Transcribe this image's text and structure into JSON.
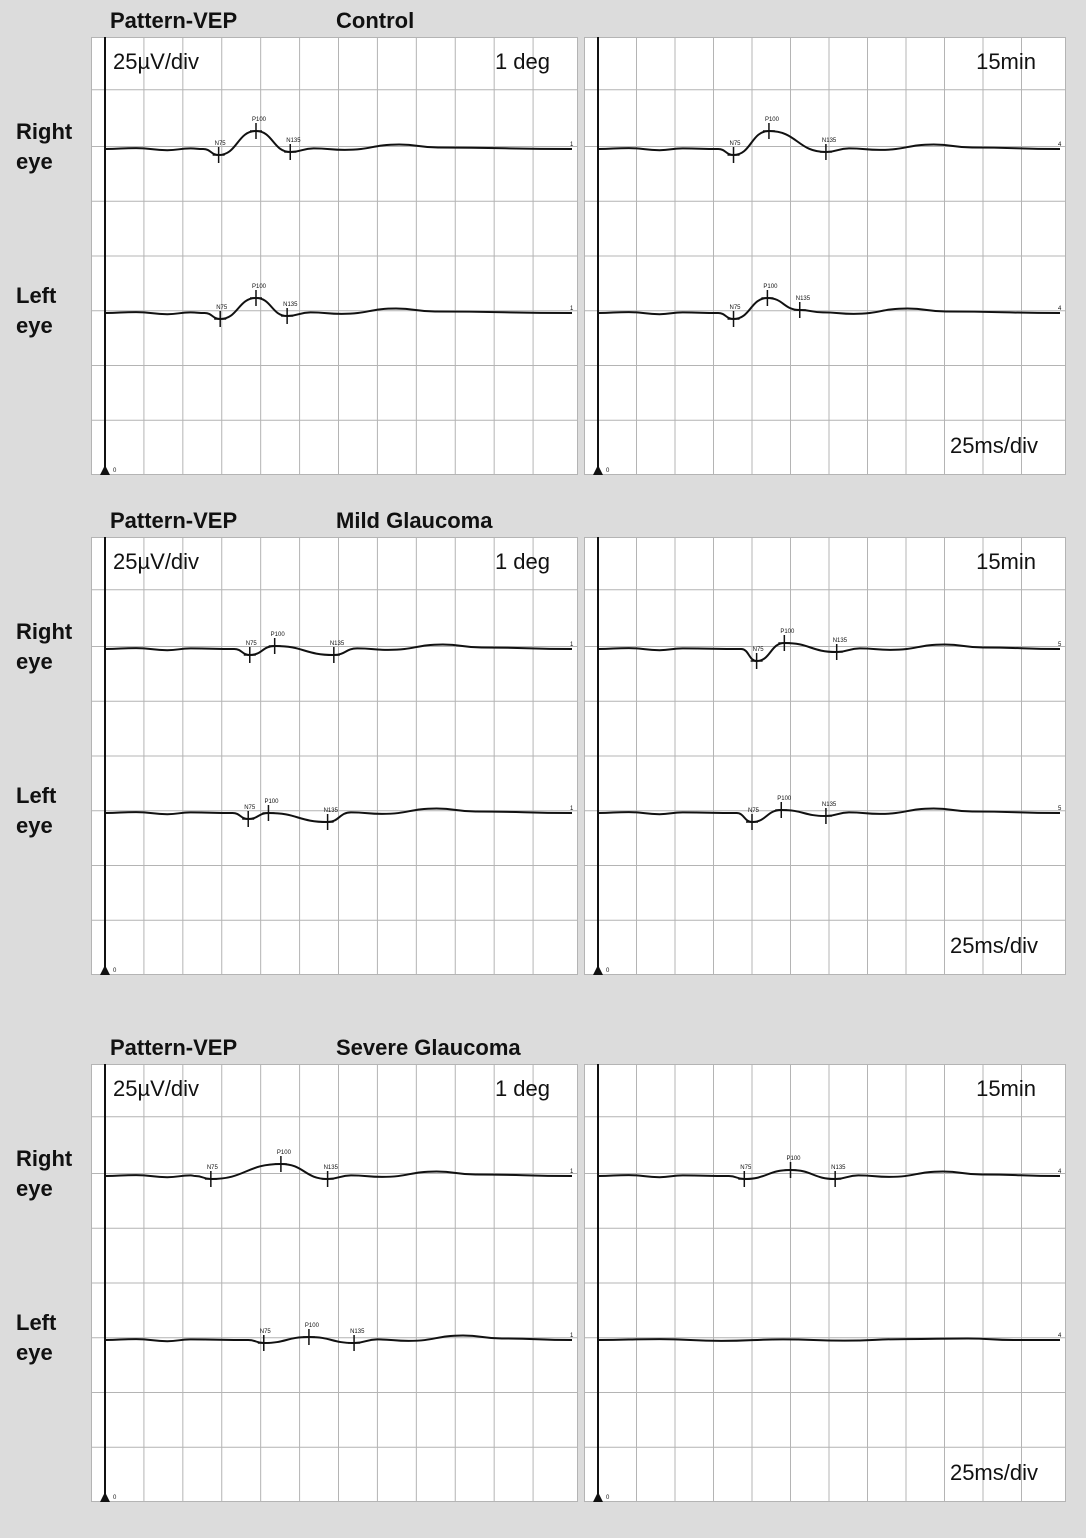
{
  "sections": [
    {
      "title": "Pattern-VEP",
      "condition": "Control"
    },
    {
      "title": "Pattern-VEP",
      "condition": "Mild Glaucoma"
    },
    {
      "title": "Pattern-VEP",
      "condition": "Severe Glaucoma"
    }
  ],
  "eye_labels": {
    "right": "Right\neye",
    "left": "Left\neye"
  },
  "scale": {
    "amplitude": "25µV/div",
    "time": "25ms/div",
    "origin_label": "0"
  },
  "stimulus": {
    "large": "1 deg",
    "small": "15min"
  },
  "peak_labels": [
    "N75",
    "P100",
    "N135"
  ],
  "colors": {
    "background": "#dcdcdc",
    "panel": "#ffffff",
    "grid": "#b4b4b4",
    "trace": "#111111"
  },
  "chart_data": [
    {
      "type": "line",
      "section": "Control",
      "stimulus": "1 deg",
      "series": [
        {
          "name": "Right eye",
          "trace_end": "1",
          "N75": [
            73,
            -0.2
          ],
          "P100": [
            97,
            0.6
          ],
          "N135": [
            119,
            -0.1
          ]
        },
        {
          "name": "Left eye",
          "trace_end": "1",
          "N75": [
            74,
            -0.2
          ],
          "P100": [
            97,
            0.5
          ],
          "N135": [
            117,
            -0.1
          ]
        }
      ]
    },
    {
      "type": "line",
      "section": "Control",
      "stimulus": "15min",
      "series": [
        {
          "name": "Right eye",
          "trace_end": "4",
          "N75": [
            88,
            -0.2
          ],
          "P100": [
            111,
            0.6
          ],
          "N135": [
            148,
            -0.1
          ]
        },
        {
          "name": "Left eye",
          "trace_end": "4",
          "N75": [
            88,
            -0.2
          ],
          "P100": [
            110,
            0.5
          ],
          "N135": [
            131,
            0.1
          ]
        }
      ]
    },
    {
      "type": "line",
      "section": "Mild Glaucoma",
      "stimulus": "1 deg",
      "series": [
        {
          "name": "Right eye",
          "trace_end": "1",
          "N75": [
            93,
            -0.2
          ],
          "P100": [
            109,
            0.1
          ],
          "N135": [
            147,
            -0.2
          ]
        },
        {
          "name": "Left eye",
          "trace_end": "1",
          "N75": [
            92,
            -0.2
          ],
          "P100": [
            105,
            0.0
          ],
          "N135": [
            143,
            -0.3
          ]
        }
      ]
    },
    {
      "type": "line",
      "section": "Mild Glaucoma",
      "stimulus": "15min",
      "series": [
        {
          "name": "Right eye",
          "trace_end": "5",
          "N75": [
            103,
            -0.4
          ],
          "P100": [
            121,
            0.2
          ],
          "N135": [
            155,
            -0.1
          ]
        },
        {
          "name": "Left eye",
          "trace_end": "5",
          "N75": [
            100,
            -0.3
          ],
          "P100": [
            119,
            0.1
          ],
          "N135": [
            148,
            -0.1
          ]
        }
      ]
    },
    {
      "type": "line",
      "section": "Severe Glaucoma",
      "stimulus": "1 deg",
      "series": [
        {
          "name": "Right eye",
          "trace_end": "1",
          "N75": [
            68,
            -0.1
          ],
          "P100": [
            113,
            0.4
          ],
          "N135": [
            143,
            -0.1
          ]
        },
        {
          "name": "Left eye",
          "trace_end": "1",
          "N75": [
            102,
            -0.1
          ],
          "P100": [
            131,
            0.1
          ],
          "N135": [
            160,
            -0.1
          ]
        }
      ]
    },
    {
      "type": "line",
      "section": "Severe Glaucoma",
      "stimulus": "15min",
      "series": [
        {
          "name": "Right eye",
          "trace_end": "4",
          "N75": [
            95,
            -0.1
          ],
          "P100": [
            125,
            0.2
          ],
          "N135": [
            154,
            -0.1
          ]
        },
        {
          "name": "Left eye",
          "trace_end": "4"
        }
      ]
    }
  ]
}
